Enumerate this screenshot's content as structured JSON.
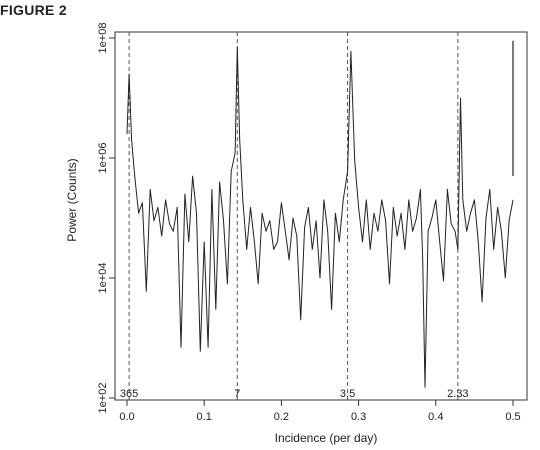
{
  "figure_label": "FIGURE 2",
  "chart_data": {
    "type": "line",
    "title": "",
    "xlabel": "Incidence (per day)",
    "ylabel": "Power (Counts)",
    "xlim": [
      -0.01,
      0.52
    ],
    "ylim_log10": [
      2,
      8
    ],
    "x_ticks": [
      {
        "value": 0.0,
        "label": "0.0"
      },
      {
        "value": 0.1,
        "label": "0.1"
      },
      {
        "value": 0.2,
        "label": "0.2"
      },
      {
        "value": 0.3,
        "label": "0.3"
      },
      {
        "value": 0.4,
        "label": "0.4"
      },
      {
        "value": 0.5,
        "label": "0.5"
      }
    ],
    "y_ticks": [
      {
        "value": 100,
        "label": "1e+02"
      },
      {
        "value": 10000,
        "label": "1e+04"
      },
      {
        "value": 1000000,
        "label": "1e+06"
      },
      {
        "value": 100000000,
        "label": "1e+08"
      }
    ],
    "y_scale": "log",
    "reference_lines": [
      {
        "x": 0.00274,
        "label": "365"
      },
      {
        "x": 0.142857,
        "label": "7"
      },
      {
        "x": 0.285714,
        "label": "3.5"
      },
      {
        "x": 0.428571,
        "label": "2.33"
      }
    ],
    "vertical_segment": {
      "x": 0.5,
      "y_from": 500000,
      "y_to": 90000000
    },
    "series": [
      {
        "x": [
          0.0,
          0.0027,
          0.006,
          0.01,
          0.015,
          0.02,
          0.025,
          0.03,
          0.035,
          0.04,
          0.045,
          0.05,
          0.055,
          0.06,
          0.065,
          0.07,
          0.075,
          0.08,
          0.085,
          0.09,
          0.095,
          0.1,
          0.105,
          0.11,
          0.115,
          0.12,
          0.125,
          0.13,
          0.135,
          0.14,
          0.1429,
          0.146,
          0.15,
          0.155,
          0.16,
          0.165,
          0.17,
          0.175,
          0.18,
          0.185,
          0.19,
          0.195,
          0.2,
          0.205,
          0.21,
          0.215,
          0.22,
          0.225,
          0.23,
          0.235,
          0.24,
          0.245,
          0.25,
          0.255,
          0.26,
          0.265,
          0.27,
          0.275,
          0.28,
          0.2857,
          0.29,
          0.295,
          0.3,
          0.305,
          0.31,
          0.315,
          0.32,
          0.325,
          0.33,
          0.335,
          0.34,
          0.345,
          0.35,
          0.355,
          0.36,
          0.365,
          0.37,
          0.375,
          0.38,
          0.383,
          0.386,
          0.39,
          0.395,
          0.4,
          0.405,
          0.41,
          0.415,
          0.42,
          0.425,
          0.4286,
          0.432,
          0.435,
          0.44,
          0.445,
          0.45,
          0.455,
          0.46,
          0.465,
          0.47,
          0.475,
          0.48,
          0.485,
          0.49,
          0.495,
          0.5
        ],
        "y": [
          2500000,
          25000000,
          2000000,
          500000,
          120000,
          180000,
          6000,
          300000,
          90000,
          150000,
          50000,
          200000,
          80000,
          60000,
          150000,
          700,
          250000,
          40000,
          500000,
          120000,
          600,
          40000,
          700,
          300000,
          3000,
          400000,
          90000,
          8000,
          600000,
          1200000,
          70000000,
          2000000,
          200000,
          30000,
          150000,
          40000,
          8000,
          120000,
          60000,
          90000,
          30000,
          40000,
          180000,
          60000,
          20000,
          100000,
          50000,
          2000,
          70000,
          150000,
          30000,
          90000,
          10000,
          200000,
          60000,
          3000,
          120000,
          40000,
          200000,
          600000,
          60000000,
          900000,
          150000,
          40000,
          200000,
          30000,
          120000,
          60000,
          200000,
          90000,
          8000,
          150000,
          50000,
          120000,
          30000,
          200000,
          60000,
          100000,
          300000,
          20000,
          150,
          60000,
          100000,
          200000,
          40000,
          9000,
          300000,
          80000,
          60000,
          30000,
          10000000,
          200000,
          60000,
          120000,
          200000,
          40000,
          4000,
          100000,
          300000,
          30000,
          150000,
          60000,
          10000,
          90000,
          200000
        ]
      }
    ]
  }
}
